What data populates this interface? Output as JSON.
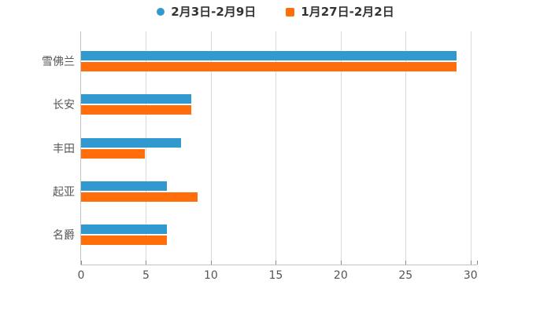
{
  "chart_data": {
    "type": "bar",
    "orientation": "horizontal",
    "title": "",
    "xlabel": "",
    "ylabel": "",
    "categories": [
      "雪佛兰",
      "长安",
      "丰田",
      "起亚",
      "名爵"
    ],
    "series": [
      {
        "name": "2月3日-2月9日",
        "color": "#3298d0",
        "marker": "circle",
        "values": [
          28.9,
          8.5,
          7.7,
          6.6,
          6.6
        ]
      },
      {
        "name": "1月27日-2月2日",
        "color": "#ff6e0a",
        "marker": "square",
        "values": [
          28.9,
          8.5,
          4.9,
          9.0,
          6.6
        ]
      }
    ],
    "xticks": [
      0,
      5,
      10,
      15,
      20,
      25,
      30
    ],
    "xlim": [
      0,
      30.5
    ],
    "grid": true,
    "legend_position": "top"
  },
  "styles": {
    "background": "#ffffff",
    "grid_color": "#dadada",
    "axis_color": "#c3c3c3",
    "tick_color": "#8a8a8a",
    "tick_text_color": "#555555",
    "legend_text_color": "#333333"
  }
}
